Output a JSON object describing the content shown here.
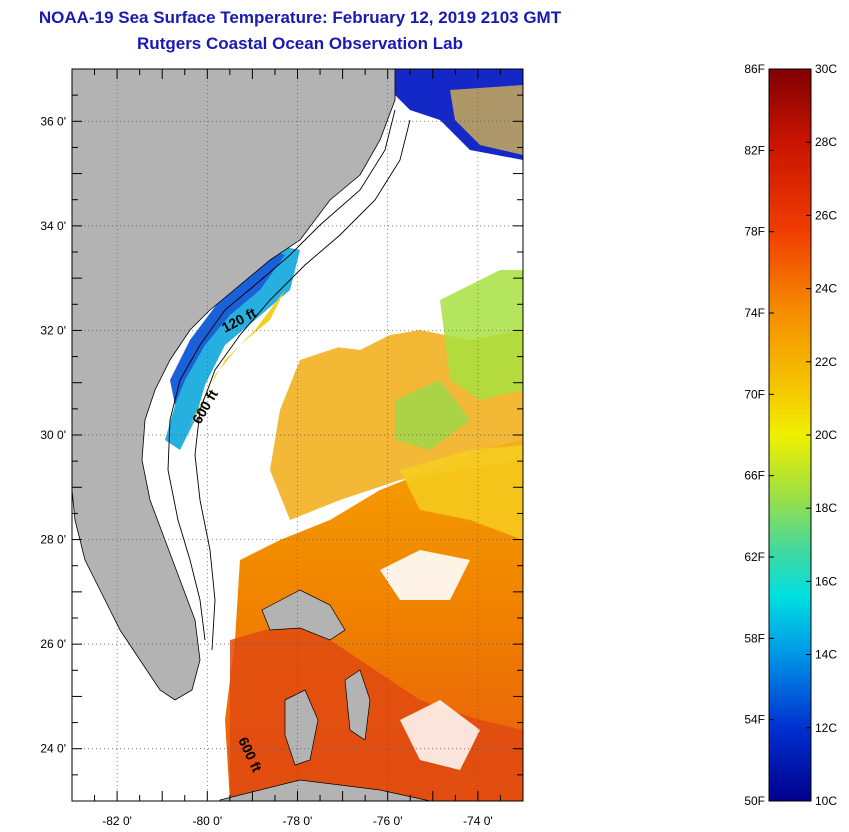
{
  "header": {
    "title": "NOAA-19 Sea Surface Temperature:  February 12, 2019 2103 GMT",
    "subtitle": "Rutgers Coastal Ocean Observation Lab"
  },
  "map": {
    "lon_range": [
      -83,
      -73
    ],
    "lat_range": [
      23,
      37
    ],
    "lat_labels": [
      {
        "lat": 36,
        "text": "36 0'"
      },
      {
        "lat": 34,
        "text": "34 0'"
      },
      {
        "lat": 32,
        "text": "32 0'"
      },
      {
        "lat": 30,
        "text": "30 0'"
      },
      {
        "lat": 28,
        "text": "28 0'"
      },
      {
        "lat": 26,
        "text": "26 0'"
      },
      {
        "lat": 24,
        "text": "24 0'"
      }
    ],
    "lon_labels": [
      {
        "lon": -82,
        "text": "-82 0'"
      },
      {
        "lon": -80,
        "text": "-80 0'"
      },
      {
        "lon": -78,
        "text": "-78 0'"
      },
      {
        "lon": -76,
        "text": "-76 0'"
      },
      {
        "lon": -74,
        "text": "-74 0'"
      }
    ],
    "contour_labels": {
      "c120": "120 ft",
      "c600a": "600 ft",
      "c600b": "600 ft"
    },
    "land_color": "#b3b3b3"
  },
  "colorbar": {
    "fahrenheit_labels": [
      "86F",
      "82F",
      "78F",
      "74F",
      "70F",
      "66F",
      "62F",
      "58F",
      "54F",
      "50F"
    ],
    "celsius_labels": [
      "30C",
      "28C",
      "26C",
      "24C",
      "22C",
      "20C",
      "18C",
      "16C",
      "14C",
      "12C",
      "10C"
    ],
    "celsius_range": [
      10,
      30
    ]
  }
}
